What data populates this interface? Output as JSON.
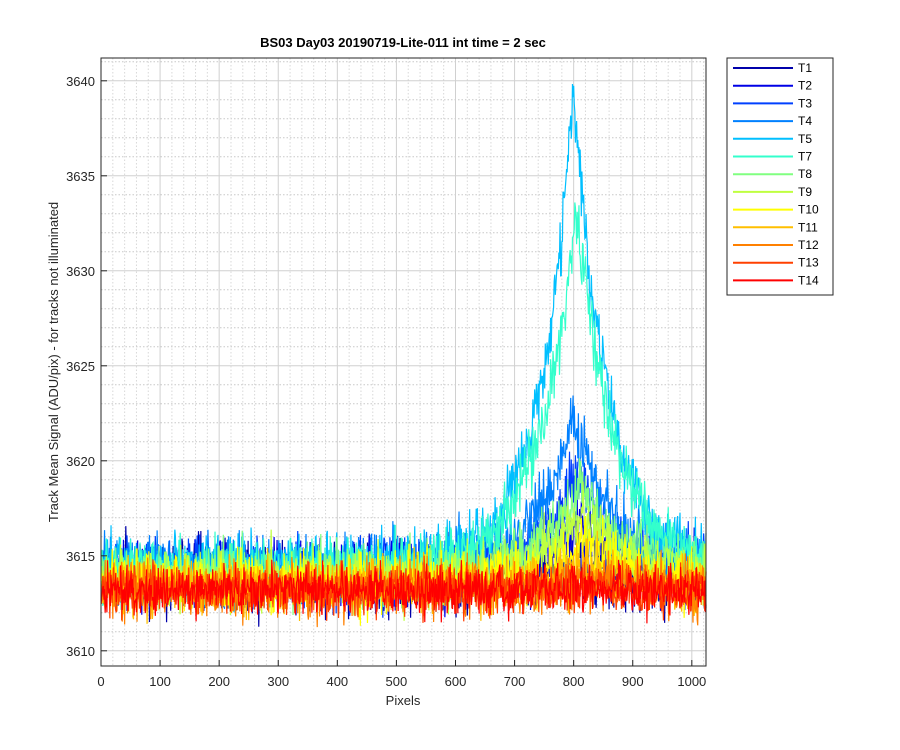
{
  "chart_data": {
    "type": "line",
    "title": "BS03 Day03 20190719-Lite-011 int time = 2 sec",
    "xlabel": "Pixels",
    "ylabel": "Track Mean Signal (ADU/pix) - for tracks not illuminated",
    "xlim": [
      0,
      1024
    ],
    "ylim": [
      3609.2,
      3641.2
    ],
    "x_ticks": [
      0,
      100,
      200,
      300,
      400,
      500,
      600,
      700,
      800,
      900,
      1000
    ],
    "y_ticks": [
      3610,
      3615,
      3620,
      3625,
      3630,
      3635,
      3640
    ],
    "grid": "major solid, minor dotted",
    "legend_position": "outside-top-right",
    "series": [
      {
        "name": "T1",
        "color": "#0000aa",
        "baseline": 3614.0,
        "noise": 1.8,
        "peak": 0.0,
        "peak_x": 800,
        "peak_width": 70
      },
      {
        "name": "T2",
        "color": "#0000e6",
        "baseline": 3614.0,
        "noise": 1.6,
        "peak": 3.0,
        "peak_x": 810,
        "peak_width": 80
      },
      {
        "name": "T3",
        "color": "#0040ff",
        "baseline": 3614.2,
        "noise": 1.6,
        "peak": 5.0,
        "peak_x": 805,
        "peak_width": 85
      },
      {
        "name": "T4",
        "color": "#0080ff",
        "baseline": 3614.3,
        "noise": 1.5,
        "peak": 8.0,
        "peak_x": 800,
        "peak_width": 90
      },
      {
        "name": "T5",
        "color": "#00bfff",
        "baseline": 3614.5,
        "noise": 1.5,
        "peak": 25.0,
        "peak_x": 800,
        "peak_width": 80
      },
      {
        "name": "T7",
        "color": "#33ffcc",
        "baseline": 3614.2,
        "noise": 1.5,
        "peak": 19.0,
        "peak_x": 805,
        "peak_width": 90
      },
      {
        "name": "T8",
        "color": "#80ff80",
        "baseline": 3614.0,
        "noise": 1.4,
        "peak": 5.0,
        "peak_x": 815,
        "peak_width": 95
      },
      {
        "name": "T9",
        "color": "#bfff40",
        "baseline": 3613.8,
        "noise": 1.4,
        "peak": 3.5,
        "peak_x": 815,
        "peak_width": 100
      },
      {
        "name": "T10",
        "color": "#ffff00",
        "baseline": 3613.6,
        "noise": 1.4,
        "peak": 2.0,
        "peak_x": 820,
        "peak_width": 100
      },
      {
        "name": "T11",
        "color": "#ffbf00",
        "baseline": 3613.4,
        "noise": 1.3,
        "peak": 1.0,
        "peak_x": 820,
        "peak_width": 100
      },
      {
        "name": "T12",
        "color": "#ff8000",
        "baseline": 3613.2,
        "noise": 1.3,
        "peak": 0.4,
        "peak_x": 820,
        "peak_width": 100
      },
      {
        "name": "T13",
        "color": "#ff4000",
        "baseline": 3613.2,
        "noise": 1.2,
        "peak": 0.2,
        "peak_x": 820,
        "peak_width": 100
      },
      {
        "name": "T14",
        "color": "#ff0000",
        "baseline": 3613.2,
        "noise": 1.2,
        "peak": 0.1,
        "peak_x": 820,
        "peak_width": 100
      }
    ]
  }
}
